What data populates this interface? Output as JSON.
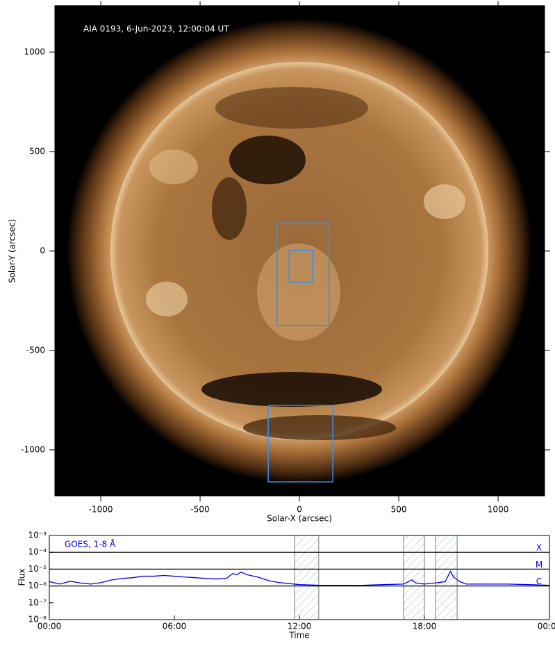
{
  "chart_data": [
    {
      "type": "image",
      "annotation": "AIA 0193, 6-Jun-2023, 12:00:04 UT",
      "xlabel": "Solar-X (arcsec)",
      "ylabel": "Solar-Y (arcsec)",
      "xlim": [
        -1231,
        1234
      ],
      "ylim": [
        -1231,
        1234
      ],
      "xticks": [
        {
          "value": -1000,
          "label": "-1000"
        },
        {
          "value": -500,
          "label": "-500"
        },
        0,
        500,
        1000
      ],
      "yticks": [
        {
          "value": -1000,
          "label": "-1000"
        },
        {
          "value": -500,
          "label": "-500"
        },
        0,
        500,
        1000
      ],
      "box_color": "#3a8ee6",
      "boxes": [
        {
          "x": [
            -112,
            150
          ],
          "y": [
            -374,
            140
          ]
        },
        {
          "x": [
            -52,
            66
          ],
          "y": [
            -157,
            3
          ]
        },
        {
          "x": [
            -157,
            168
          ],
          "y": [
            -1161,
            -776
          ]
        }
      ]
    },
    {
      "type": "line",
      "xlabel": "Time",
      "ylabel": "Flux",
      "ylog": true,
      "xlim": [
        0,
        24
      ],
      "ylim": [
        1e-08,
        0.001
      ],
      "xticks": [
        {
          "value": 0,
          "label": "00:00"
        },
        {
          "value": 6,
          "label": "06:00"
        },
        {
          "value": 12,
          "label": "12:00"
        },
        {
          "value": 18,
          "label": "18:00"
        },
        {
          "value": 24,
          "label": "00:00"
        }
      ],
      "yticks": [
        {
          "value": 1e-08,
          "label": "10⁻⁸"
        },
        {
          "value": 1e-07,
          "label": "10⁻⁷"
        },
        {
          "value": 1e-06,
          "label": "10⁻⁶"
        },
        {
          "value": 1e-05,
          "label": "10⁻⁵"
        },
        {
          "value": 0.0001,
          "label": "10⁻⁴"
        },
        {
          "value": 0.001,
          "label": "10⁻³"
        }
      ],
      "flare_levels": [
        {
          "value": 0.0001,
          "label": "X"
        },
        {
          "value": 1e-05,
          "label": "M"
        },
        {
          "value": 1e-06,
          "label": "C"
        }
      ],
      "shaded": [
        [
          11.77,
          12.93
        ],
        [
          17.0,
          18.0
        ],
        [
          18.53,
          19.57
        ]
      ],
      "x": [
        0,
        0.5,
        1,
        1.5,
        2,
        2.5,
        3,
        3.5,
        4,
        4.5,
        5,
        5.5,
        6,
        6.5,
        7,
        7.5,
        8,
        8.5,
        8.8,
        9,
        9.2,
        9.5,
        10,
        10.5,
        11,
        12,
        13,
        14,
        15,
        16,
        17,
        17.4,
        17.6,
        18,
        18.5,
        19,
        19.25,
        19.4,
        19.7,
        20,
        21,
        22,
        23,
        24
      ],
      "series": [
        {
          "name": "GOES, 1-8 Å",
          "color": "#0000ee",
          "values": [
            1.8e-06,
            1.3e-06,
            1.9e-06,
            1.5e-06,
            1.3e-06,
            1.6e-06,
            2.3e-06,
            2.8e-06,
            3.1e-06,
            3.8e-06,
            3.8e-06,
            4.2e-06,
            3.8e-06,
            3.4e-06,
            3.1e-06,
            2.8e-06,
            2.6e-06,
            2.8e-06,
            5.5e-06,
            4.6e-06,
            6.7e-06,
            4.6e-06,
            3.4e-06,
            2.1e-06,
            1.6e-06,
            1.2e-06,
            1.1e-06,
            1.1e-06,
            1.1e-06,
            1.2e-06,
            1.3e-06,
            2.3e-06,
            1.5e-06,
            1.3e-06,
            1.5e-06,
            1.8e-06,
            7.4e-06,
            3.4e-06,
            1.8e-06,
            1.3e-06,
            1.3e-06,
            1.3e-06,
            1.2e-06,
            1.1e-06
          ]
        }
      ]
    }
  ]
}
